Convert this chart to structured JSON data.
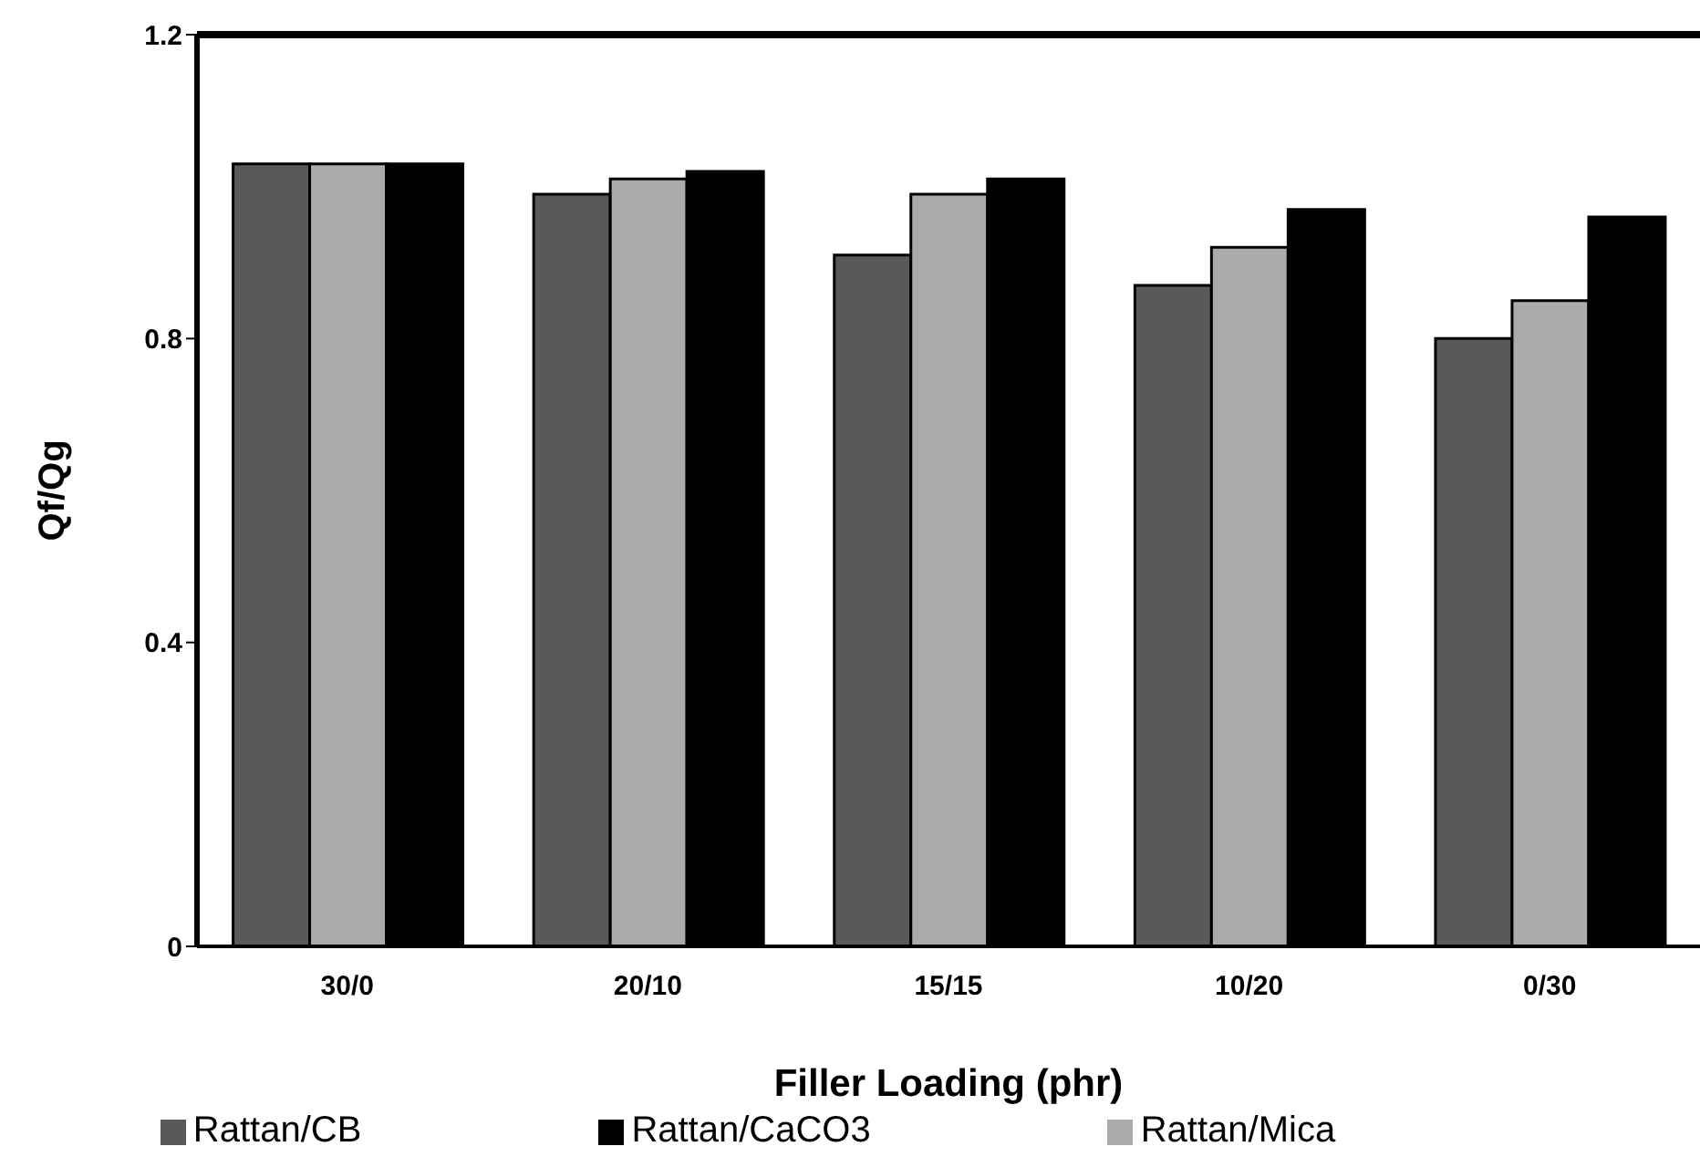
{
  "chart_data": {
    "type": "bar",
    "xlabel": "Filler Loading (phr)",
    "ylabel": "Qf/Qg",
    "categories": [
      "30/0",
      "20/10",
      "15/15",
      "10/20",
      "0/30"
    ],
    "series": [
      {
        "name": "Rattan/CB",
        "color": "#595959",
        "values": [
          1.03,
          0.99,
          0.91,
          0.87,
          0.8
        ]
      },
      {
        "name": "Rattan/Mica",
        "color": "#ababab",
        "values": [
          1.03,
          1.01,
          0.99,
          0.92,
          0.85
        ]
      },
      {
        "name": "Rattan/CaCO3",
        "color": "#000000",
        "values": [
          1.03,
          1.02,
          1.01,
          0.97,
          0.96
        ]
      }
    ],
    "ylim": [
      0,
      1.2
    ],
    "yticks": [
      0,
      0.4,
      0.8,
      1.2
    ],
    "legend": "bottom"
  }
}
